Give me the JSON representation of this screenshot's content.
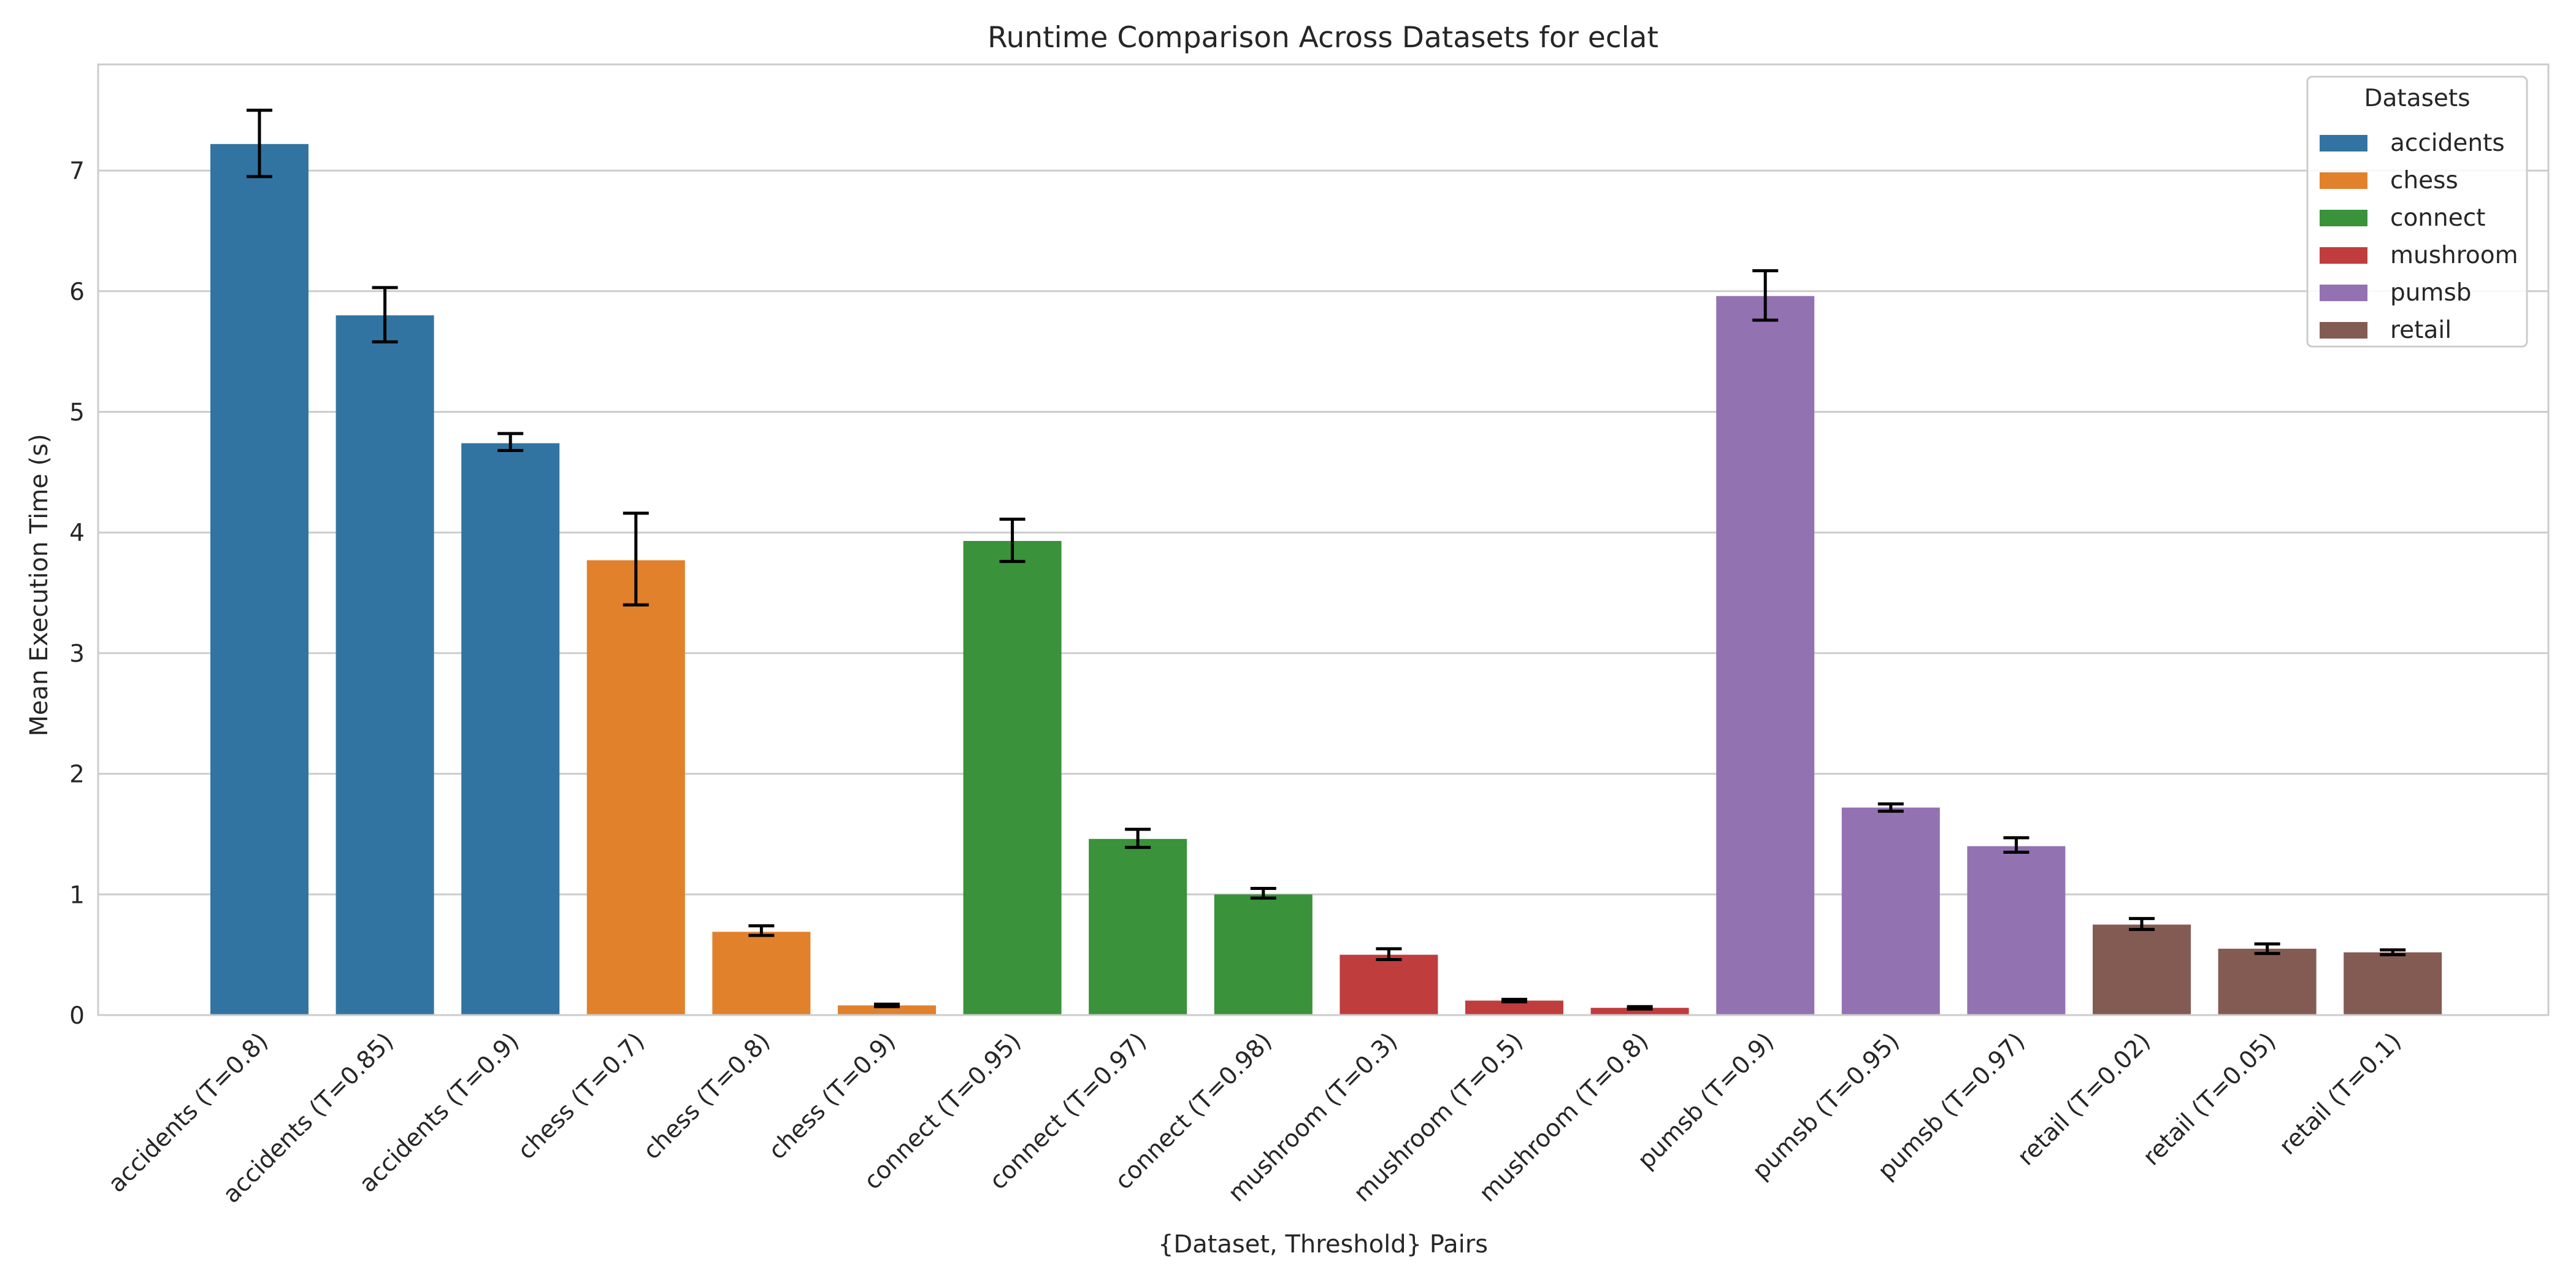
{
  "chart_data": {
    "type": "bar",
    "title": "Runtime Comparison Across Datasets for eclat",
    "xlabel": "{Dataset, Threshold} Pairs",
    "ylabel": "Mean Execution Time (s)",
    "ylim": [
      0,
      7.88
    ],
    "yticks": [
      0,
      1,
      2,
      3,
      4,
      5,
      6,
      7
    ],
    "grid": true,
    "legend": {
      "title": "Datasets",
      "placement": "top-right",
      "entries": [
        {
          "name": "accidents",
          "color": "#3274a1"
        },
        {
          "name": "chess",
          "color": "#e1812c"
        },
        {
          "name": "connect",
          "color": "#3a923a"
        },
        {
          "name": "mushroom",
          "color": "#c03d3e"
        },
        {
          "name": "pumsb",
          "color": "#9372b2"
        },
        {
          "name": "retail",
          "color": "#845b53"
        }
      ]
    },
    "categories": [
      "accidents (T=0.8)",
      "accidents (T=0.85)",
      "accidents (T=0.9)",
      "chess (T=0.7)",
      "chess (T=0.8)",
      "chess (T=0.9)",
      "connect (T=0.95)",
      "connect (T=0.97)",
      "connect (T=0.98)",
      "mushroom (T=0.3)",
      "mushroom (T=0.5)",
      "mushroom (T=0.8)",
      "pumsb (T=0.9)",
      "pumsb (T=0.95)",
      "pumsb (T=0.97)",
      "retail (T=0.02)",
      "retail (T=0.05)",
      "retail (T=0.1)"
    ],
    "groups": [
      "accidents",
      "accidents",
      "accidents",
      "chess",
      "chess",
      "chess",
      "connect",
      "connect",
      "connect",
      "mushroom",
      "mushroom",
      "mushroom",
      "pumsb",
      "pumsb",
      "pumsb",
      "retail",
      "retail",
      "retail"
    ],
    "values": [
      7.22,
      5.8,
      4.74,
      3.77,
      0.69,
      0.08,
      3.93,
      1.46,
      1.0,
      0.5,
      0.12,
      0.06,
      5.96,
      1.72,
      1.4,
      0.75,
      0.55,
      0.52
    ],
    "error_low": [
      6.95,
      5.58,
      4.68,
      3.4,
      0.66,
      0.07,
      3.76,
      1.39,
      0.97,
      0.46,
      0.11,
      0.05,
      5.76,
      1.69,
      1.35,
      0.71,
      0.51,
      0.5
    ],
    "error_high": [
      7.5,
      6.03,
      4.82,
      4.16,
      0.74,
      0.09,
      4.11,
      1.54,
      1.05,
      0.55,
      0.13,
      0.07,
      6.17,
      1.75,
      1.47,
      0.8,
      0.59,
      0.54
    ]
  }
}
